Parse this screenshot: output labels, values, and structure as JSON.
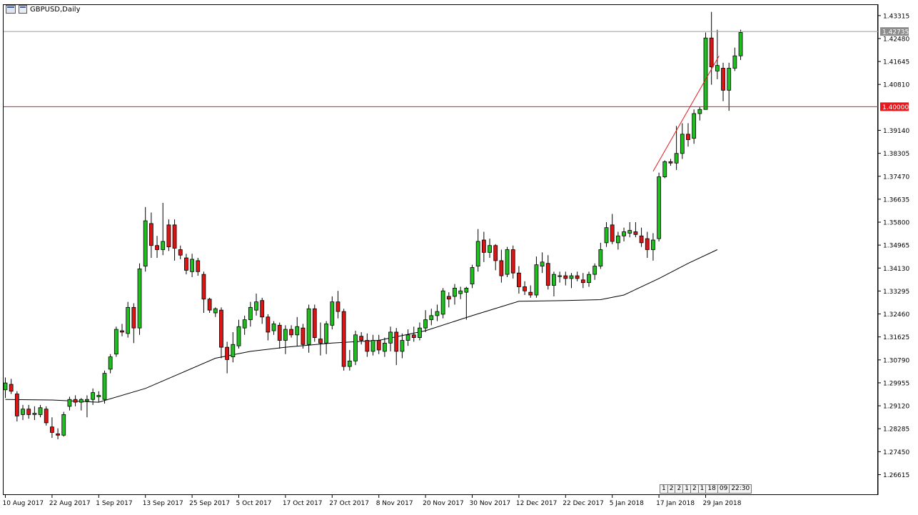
{
  "window": {
    "title": "GBPUSD,Daily"
  },
  "chart_data": {
    "type": "candlestick",
    "symbol": "GBPUSD",
    "timeframe": "Daily",
    "y_axis": {
      "ticks": [
        "1.43315",
        "1.42480",
        "1.41645",
        "1.40810",
        "1.39140",
        "1.38305",
        "1.37470",
        "1.36635",
        "1.35800",
        "1.34965",
        "1.34130",
        "1.33295",
        "1.32460",
        "1.31625",
        "1.30790",
        "1.29955",
        "1.29120",
        "1.28285",
        "1.27450",
        "1.26615"
      ],
      "range": [
        1.259,
        1.437
      ]
    },
    "x_axis": {
      "labels": [
        "10 Aug 2017",
        "22 Aug 2017",
        "1 Sep 2017",
        "13 Sep 2017",
        "25 Sep 2017",
        "5 Oct 2017",
        "17 Oct 2017",
        "27 Oct 2017",
        "8 Nov 2017",
        "20 Nov 2017",
        "30 Nov 2017",
        "12 Dec 2017",
        "22 Dec 2017",
        "5 Jan 2018",
        "17 Jan 2018",
        "29 Jan 2018"
      ],
      "label_bar_index": [
        0,
        8,
        16,
        24,
        32,
        40,
        48,
        56,
        64,
        72,
        80,
        88,
        96,
        104,
        112,
        120
      ]
    },
    "price_label": "1.42735",
    "current_price": 1.42735,
    "horizontal_levels": [
      {
        "label": "1.40000",
        "value": 1.4,
        "color": "#e8191c"
      }
    ],
    "ma_series": {
      "name": "",
      "color": "#000000",
      "points": [
        [
          0,
          1.2935
        ],
        [
          8,
          1.2933
        ],
        [
          16,
          1.2925
        ],
        [
          24,
          1.2975
        ],
        [
          30,
          1.303
        ],
        [
          36,
          1.3085
        ],
        [
          42,
          1.311
        ],
        [
          48,
          1.3125
        ],
        [
          56,
          1.314
        ],
        [
          64,
          1.315
        ],
        [
          72,
          1.3185
        ],
        [
          80,
          1.324
        ],
        [
          88,
          1.3292
        ],
        [
          96,
          1.3295
        ],
        [
          102,
          1.3298
        ],
        [
          106,
          1.3315
        ],
        [
          112,
          1.3375
        ],
        [
          117,
          1.343
        ],
        [
          122,
          1.348
        ]
      ]
    },
    "trendline": {
      "color": "#e8191c",
      "from": [
        111,
        1.3765
      ],
      "to": [
        122.3,
        1.4185
      ]
    },
    "candles": [
      {
        "o": 1.297,
        "h": 1.3015,
        "l": 1.294,
        "c": 1.2995
      },
      {
        "o": 1.299,
        "h": 1.301,
        "l": 1.2955,
        "c": 1.2965
      },
      {
        "o": 1.2955,
        "h": 1.2965,
        "l": 1.2855,
        "c": 1.2875
      },
      {
        "o": 1.288,
        "h": 1.2915,
        "l": 1.286,
        "c": 1.29
      },
      {
        "o": 1.29,
        "h": 1.2915,
        "l": 1.2865,
        "c": 1.288
      },
      {
        "o": 1.288,
        "h": 1.291,
        "l": 1.286,
        "c": 1.2885
      },
      {
        "o": 1.288,
        "h": 1.2915,
        "l": 1.287,
        "c": 1.2905
      },
      {
        "o": 1.29,
        "h": 1.291,
        "l": 1.284,
        "c": 1.285
      },
      {
        "o": 1.2835,
        "h": 1.287,
        "l": 1.2795,
        "c": 1.2815
      },
      {
        "o": 1.281,
        "h": 1.283,
        "l": 1.279,
        "c": 1.2805
      },
      {
        "o": 1.2805,
        "h": 1.289,
        "l": 1.28,
        "c": 1.288
      },
      {
        "o": 1.291,
        "h": 1.2945,
        "l": 1.2895,
        "c": 1.2935
      },
      {
        "o": 1.2935,
        "h": 1.295,
        "l": 1.291,
        "c": 1.2925
      },
      {
        "o": 1.2925,
        "h": 1.294,
        "l": 1.2895,
        "c": 1.2935
      },
      {
        "o": 1.293,
        "h": 1.295,
        "l": 1.287,
        "c": 1.2935
      },
      {
        "o": 1.2935,
        "h": 1.2975,
        "l": 1.2915,
        "c": 1.296
      },
      {
        "o": 1.2945,
        "h": 1.2965,
        "l": 1.2925,
        "c": 1.295
      },
      {
        "o": 1.2935,
        "h": 1.304,
        "l": 1.292,
        "c": 1.303
      },
      {
        "o": 1.3045,
        "h": 1.31,
        "l": 1.303,
        "c": 1.309
      },
      {
        "o": 1.31,
        "h": 1.32,
        "l": 1.309,
        "c": 1.319
      },
      {
        "o": 1.3185,
        "h": 1.321,
        "l": 1.3165,
        "c": 1.318
      },
      {
        "o": 1.3175,
        "h": 1.329,
        "l": 1.316,
        "c": 1.327
      },
      {
        "o": 1.327,
        "h": 1.3285,
        "l": 1.314,
        "c": 1.3195
      },
      {
        "o": 1.3195,
        "h": 1.343,
        "l": 1.317,
        "c": 1.341
      },
      {
        "o": 1.342,
        "h": 1.3635,
        "l": 1.34,
        "c": 1.3585
      },
      {
        "o": 1.3575,
        "h": 1.3615,
        "l": 1.345,
        "c": 1.3495
      },
      {
        "o": 1.3495,
        "h": 1.353,
        "l": 1.345,
        "c": 1.348
      },
      {
        "o": 1.348,
        "h": 1.365,
        "l": 1.346,
        "c": 1.351
      },
      {
        "o": 1.357,
        "h": 1.359,
        "l": 1.3475,
        "c": 1.349
      },
      {
        "o": 1.357,
        "h": 1.359,
        "l": 1.344,
        "c": 1.3485
      },
      {
        "o": 1.348,
        "h": 1.3495,
        "l": 1.3445,
        "c": 1.346
      },
      {
        "o": 1.345,
        "h": 1.3465,
        "l": 1.339,
        "c": 1.3405
      },
      {
        "o": 1.34,
        "h": 1.3465,
        "l": 1.338,
        "c": 1.3445
      },
      {
        "o": 1.344,
        "h": 1.345,
        "l": 1.3385,
        "c": 1.34
      },
      {
        "o": 1.339,
        "h": 1.34,
        "l": 1.325,
        "c": 1.33
      },
      {
        "o": 1.33,
        "h": 1.3305,
        "l": 1.325,
        "c": 1.326
      },
      {
        "o": 1.325,
        "h": 1.327,
        "l": 1.3235,
        "c": 1.3265
      },
      {
        "o": 1.326,
        "h": 1.327,
        "l": 1.3085,
        "c": 1.3125
      },
      {
        "o": 1.3125,
        "h": 1.3145,
        "l": 1.303,
        "c": 1.308
      },
      {
        "o": 1.309,
        "h": 1.318,
        "l": 1.307,
        "c": 1.3135
      },
      {
        "o": 1.313,
        "h": 1.3225,
        "l": 1.312,
        "c": 1.32
      },
      {
        "o": 1.3195,
        "h": 1.324,
        "l": 1.317,
        "c": 1.3225
      },
      {
        "o": 1.3225,
        "h": 1.329,
        "l": 1.32,
        "c": 1.327
      },
      {
        "o": 1.326,
        "h": 1.332,
        "l": 1.324,
        "c": 1.329
      },
      {
        "o": 1.3295,
        "h": 1.3305,
        "l": 1.321,
        "c": 1.3235
      },
      {
        "o": 1.3235,
        "h": 1.3245,
        "l": 1.315,
        "c": 1.318
      },
      {
        "o": 1.3185,
        "h": 1.322,
        "l": 1.317,
        "c": 1.321
      },
      {
        "o": 1.3205,
        "h": 1.3215,
        "l": 1.312,
        "c": 1.315
      },
      {
        "o": 1.315,
        "h": 1.3205,
        "l": 1.31,
        "c": 1.319
      },
      {
        "o": 1.319,
        "h": 1.3205,
        "l": 1.316,
        "c": 1.317
      },
      {
        "o": 1.317,
        "h": 1.3235,
        "l": 1.313,
        "c": 1.32
      },
      {
        "o": 1.3195,
        "h": 1.321,
        "l": 1.312,
        "c": 1.3135
      },
      {
        "o": 1.3135,
        "h": 1.328,
        "l": 1.3105,
        "c": 1.3265
      },
      {
        "o": 1.3265,
        "h": 1.328,
        "l": 1.3145,
        "c": 1.316
      },
      {
        "o": 1.3155,
        "h": 1.3215,
        "l": 1.3095,
        "c": 1.314
      },
      {
        "o": 1.314,
        "h": 1.322,
        "l": 1.31,
        "c": 1.321
      },
      {
        "o": 1.3205,
        "h": 1.331,
        "l": 1.319,
        "c": 1.329
      },
      {
        "o": 1.329,
        "h": 1.333,
        "l": 1.323,
        "c": 1.3255
      },
      {
        "o": 1.3255,
        "h": 1.3265,
        "l": 1.304,
        "c": 1.3055
      },
      {
        "o": 1.3055,
        "h": 1.3115,
        "l": 1.304,
        "c": 1.3075
      },
      {
        "o": 1.3075,
        "h": 1.3185,
        "l": 1.306,
        "c": 1.317
      },
      {
        "o": 1.3165,
        "h": 1.318,
        "l": 1.3135,
        "c": 1.315
      },
      {
        "o": 1.315,
        "h": 1.3175,
        "l": 1.309,
        "c": 1.311
      },
      {
        "o": 1.311,
        "h": 1.317,
        "l": 1.3095,
        "c": 1.315
      },
      {
        "o": 1.315,
        "h": 1.317,
        "l": 1.31,
        "c": 1.3115
      },
      {
        "o": 1.311,
        "h": 1.316,
        "l": 1.309,
        "c": 1.314
      },
      {
        "o": 1.314,
        "h": 1.32,
        "l": 1.311,
        "c": 1.318
      },
      {
        "o": 1.318,
        "h": 1.3195,
        "l": 1.306,
        "c": 1.311
      },
      {
        "o": 1.311,
        "h": 1.3175,
        "l": 1.3085,
        "c": 1.315
      },
      {
        "o": 1.315,
        "h": 1.319,
        "l": 1.313,
        "c": 1.317
      },
      {
        "o": 1.317,
        "h": 1.32,
        "l": 1.3145,
        "c": 1.316
      },
      {
        "o": 1.316,
        "h": 1.3215,
        "l": 1.315,
        "c": 1.3195
      },
      {
        "o": 1.3195,
        "h": 1.326,
        "l": 1.318,
        "c": 1.3225
      },
      {
        "o": 1.3225,
        "h": 1.3265,
        "l": 1.3205,
        "c": 1.324
      },
      {
        "o": 1.324,
        "h": 1.328,
        "l": 1.322,
        "c": 1.3255
      },
      {
        "o": 1.3245,
        "h": 1.334,
        "l": 1.323,
        "c": 1.333
      },
      {
        "o": 1.331,
        "h": 1.3325,
        "l": 1.327,
        "c": 1.33
      },
      {
        "o": 1.331,
        "h": 1.3355,
        "l": 1.328,
        "c": 1.334
      },
      {
        "o": 1.332,
        "h": 1.3345,
        "l": 1.33,
        "c": 1.333
      },
      {
        "o": 1.3325,
        "h": 1.3345,
        "l": 1.3225,
        "c": 1.334
      },
      {
        "o": 1.3355,
        "h": 1.3425,
        "l": 1.334,
        "c": 1.3415
      },
      {
        "o": 1.342,
        "h": 1.3555,
        "l": 1.34,
        "c": 1.351
      },
      {
        "o": 1.3515,
        "h": 1.3545,
        "l": 1.3435,
        "c": 1.347
      },
      {
        "o": 1.347,
        "h": 1.352,
        "l": 1.345,
        "c": 1.3495
      },
      {
        "o": 1.3495,
        "h": 1.35,
        "l": 1.3405,
        "c": 1.344
      },
      {
        "o": 1.344,
        "h": 1.348,
        "l": 1.336,
        "c": 1.3385
      },
      {
        "o": 1.339,
        "h": 1.349,
        "l": 1.338,
        "c": 1.348
      },
      {
        "o": 1.348,
        "h": 1.3495,
        "l": 1.3375,
        "c": 1.3395
      },
      {
        "o": 1.3395,
        "h": 1.342,
        "l": 1.332,
        "c": 1.3345
      },
      {
        "o": 1.3345,
        "h": 1.3365,
        "l": 1.3315,
        "c": 1.333
      },
      {
        "o": 1.3325,
        "h": 1.335,
        "l": 1.3305,
        "c": 1.3315
      },
      {
        "o": 1.3315,
        "h": 1.3455,
        "l": 1.3305,
        "c": 1.3425
      },
      {
        "o": 1.342,
        "h": 1.347,
        "l": 1.3395,
        "c": 1.3435
      },
      {
        "o": 1.343,
        "h": 1.346,
        "l": 1.3335,
        "c": 1.335
      },
      {
        "o": 1.335,
        "h": 1.34,
        "l": 1.331,
        "c": 1.339
      },
      {
        "o": 1.3385,
        "h": 1.34,
        "l": 1.336,
        "c": 1.3385
      },
      {
        "o": 1.3385,
        "h": 1.34,
        "l": 1.335,
        "c": 1.3375
      },
      {
        "o": 1.3375,
        "h": 1.3395,
        "l": 1.334,
        "c": 1.3385
      },
      {
        "o": 1.3385,
        "h": 1.34,
        "l": 1.3365,
        "c": 1.3375
      },
      {
        "o": 1.337,
        "h": 1.3395,
        "l": 1.334,
        "c": 1.336
      },
      {
        "o": 1.336,
        "h": 1.34,
        "l": 1.3345,
        "c": 1.339
      },
      {
        "o": 1.339,
        "h": 1.343,
        "l": 1.337,
        "c": 1.342
      },
      {
        "o": 1.342,
        "h": 1.3505,
        "l": 1.341,
        "c": 1.348
      },
      {
        "o": 1.3505,
        "h": 1.358,
        "l": 1.349,
        "c": 1.356
      },
      {
        "o": 1.357,
        "h": 1.361,
        "l": 1.35,
        "c": 1.351
      },
      {
        "o": 1.3505,
        "h": 1.3545,
        "l": 1.348,
        "c": 1.353
      },
      {
        "o": 1.353,
        "h": 1.356,
        "l": 1.351,
        "c": 1.3545
      },
      {
        "o": 1.354,
        "h": 1.358,
        "l": 1.3525,
        "c": 1.355
      },
      {
        "o": 1.3545,
        "h": 1.358,
        "l": 1.3525,
        "c": 1.3535
      },
      {
        "o": 1.353,
        "h": 1.356,
        "l": 1.349,
        "c": 1.3505
      },
      {
        "o": 1.352,
        "h": 1.3545,
        "l": 1.345,
        "c": 1.348
      },
      {
        "o": 1.348,
        "h": 1.354,
        "l": 1.344,
        "c": 1.3515
      },
      {
        "o": 1.352,
        "h": 1.376,
        "l": 1.351,
        "c": 1.3745
      },
      {
        "o": 1.3745,
        "h": 1.3805,
        "l": 1.374,
        "c": 1.38
      },
      {
        "o": 1.38,
        "h": 1.381,
        "l": 1.3785,
        "c": 1.3795
      },
      {
        "o": 1.3795,
        "h": 1.393,
        "l": 1.377,
        "c": 1.383
      },
      {
        "o": 1.383,
        "h": 1.394,
        "l": 1.381,
        "c": 1.39
      },
      {
        "o": 1.39,
        "h": 1.394,
        "l": 1.3855,
        "c": 1.388
      },
      {
        "o": 1.3885,
        "h": 1.399,
        "l": 1.3865,
        "c": 1.3975
      },
      {
        "o": 1.3975,
        "h": 1.4,
        "l": 1.395,
        "c": 1.399
      },
      {
        "o": 1.399,
        "h": 1.427,
        "l": 1.399,
        "c": 1.425
      },
      {
        "o": 1.425,
        "h": 1.4345,
        "l": 1.408,
        "c": 1.4145
      },
      {
        "o": 1.413,
        "h": 1.428,
        "l": 1.41,
        "c": 1.415
      },
      {
        "o": 1.414,
        "h": 1.416,
        "l": 1.402,
        "c": 1.406
      },
      {
        "o": 1.406,
        "h": 1.416,
        "l": 1.3985,
        "c": 1.414
      },
      {
        "o": 1.414,
        "h": 1.4215,
        "l": 1.413,
        "c": 1.4185
      },
      {
        "o": 1.4185,
        "h": 1.428,
        "l": 1.417,
        "c": 1.427
      }
    ],
    "time_labels": [
      "1",
      "2",
      "2",
      "1",
      "2",
      "1",
      "18",
      "09",
      "22:30"
    ]
  }
}
